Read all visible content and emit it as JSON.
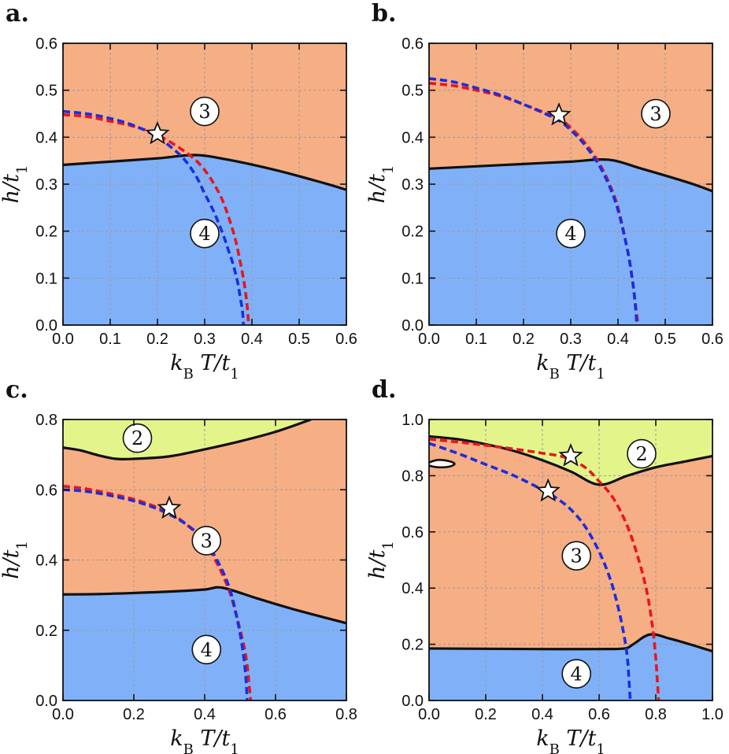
{
  "colors": {
    "region_2": "#e3f58a",
    "region_3": "#f6ae84",
    "region_4": "#80b1f8",
    "phase_boundary": "#111111",
    "red_dashed": "#e8161c",
    "blue_dashed": "#1a2ee0",
    "grid": "#9a9a9a"
  },
  "chart_data": [
    {
      "id": "a",
      "panel_label": "a.",
      "type": "area",
      "xlabel": "k_B T/t_1",
      "ylabel": "h/t_1",
      "xlim": [
        0,
        0.6
      ],
      "ylim": [
        0,
        0.6
      ],
      "xticks": [
        "0.0",
        "0.1",
        "0.2",
        "0.3",
        "0.4",
        "0.5",
        "0.6"
      ],
      "yticks": [
        "0.0",
        "0.1",
        "0.2",
        "0.3",
        "0.4",
        "0.5",
        "0.6"
      ],
      "grid": true,
      "boundaries": [
        {
          "name": "3-4 boundary",
          "x": [
            0,
            0.1,
            0.2,
            0.28,
            0.35,
            0.45,
            0.55,
            0.6
          ],
          "y": [
            0.341,
            0.348,
            0.355,
            0.362,
            0.352,
            0.33,
            0.303,
            0.288
          ]
        }
      ],
      "regions": [
        {
          "label": "3",
          "x": 0.3,
          "y": 0.455
        },
        {
          "label": "4",
          "x": 0.3,
          "y": 0.195
        }
      ],
      "series": [
        {
          "color": "red",
          "style": "dashed",
          "x": [
            0,
            0.05,
            0.1,
            0.15,
            0.2,
            0.25,
            0.28,
            0.3,
            0.32,
            0.34,
            0.36,
            0.37,
            0.38,
            0.385,
            0.39,
            0.393
          ],
          "y": [
            0.448,
            0.444,
            0.434,
            0.423,
            0.405,
            0.375,
            0.352,
            0.33,
            0.3,
            0.26,
            0.2,
            0.16,
            0.11,
            0.08,
            0.04,
            0.0
          ]
        },
        {
          "color": "blue",
          "style": "dashed",
          "x": [
            0,
            0.05,
            0.1,
            0.15,
            0.2,
            0.25,
            0.28,
            0.3,
            0.32,
            0.34,
            0.35,
            0.36,
            0.37,
            0.375,
            0.38,
            0.382
          ],
          "y": [
            0.455,
            0.45,
            0.44,
            0.425,
            0.4,
            0.36,
            0.32,
            0.28,
            0.24,
            0.19,
            0.16,
            0.13,
            0.09,
            0.06,
            0.03,
            0.0
          ]
        }
      ],
      "markers": [
        {
          "shape": "star",
          "x": 0.2,
          "y": 0.407
        }
      ]
    },
    {
      "id": "b",
      "panel_label": "b.",
      "type": "area",
      "xlabel": "k_B T/t_1",
      "ylabel": "h/t_1",
      "xlim": [
        0,
        0.6
      ],
      "ylim": [
        0,
        0.6
      ],
      "xticks": [
        "0.0",
        "0.1",
        "0.2",
        "0.3",
        "0.4",
        "0.5",
        "0.6"
      ],
      "yticks": [
        "0.0",
        "0.1",
        "0.2",
        "0.3",
        "0.4",
        "0.5",
        "0.6"
      ],
      "grid": true,
      "boundaries": [
        {
          "name": "3-4 boundary",
          "x": [
            0,
            0.1,
            0.2,
            0.3,
            0.38,
            0.45,
            0.55,
            0.6
          ],
          "y": [
            0.333,
            0.338,
            0.343,
            0.348,
            0.352,
            0.333,
            0.303,
            0.285
          ]
        }
      ],
      "regions": [
        {
          "label": "3",
          "x": 0.48,
          "y": 0.45
        },
        {
          "label": "4",
          "x": 0.3,
          "y": 0.195
        }
      ],
      "series": [
        {
          "color": "red",
          "style": "dashed",
          "x": [
            0,
            0.05,
            0.1,
            0.15,
            0.2,
            0.25,
            0.28,
            0.3,
            0.32,
            0.34,
            0.36,
            0.38,
            0.4,
            0.42,
            0.43,
            0.435,
            0.44,
            0.443
          ],
          "y": [
            0.515,
            0.51,
            0.5,
            0.488,
            0.47,
            0.45,
            0.437,
            0.42,
            0.4,
            0.375,
            0.345,
            0.305,
            0.25,
            0.16,
            0.1,
            0.06,
            0.02,
            0.0
          ]
        },
        {
          "color": "blue",
          "style": "dashed",
          "x": [
            0,
            0.05,
            0.1,
            0.15,
            0.2,
            0.25,
            0.28,
            0.3,
            0.32,
            0.34,
            0.36,
            0.38,
            0.4,
            0.42,
            0.43,
            0.435,
            0.44
          ],
          "y": [
            0.525,
            0.518,
            0.505,
            0.49,
            0.47,
            0.448,
            0.432,
            0.415,
            0.395,
            0.37,
            0.34,
            0.3,
            0.245,
            0.16,
            0.1,
            0.06,
            0.0
          ]
        }
      ],
      "markers": [
        {
          "shape": "star",
          "x": 0.275,
          "y": 0.447
        }
      ]
    },
    {
      "id": "c",
      "panel_label": "c.",
      "type": "area",
      "xlabel": "k_B T/t_1",
      "ylabel": "h/t_1",
      "xlim": [
        0,
        0.8
      ],
      "ylim": [
        0,
        0.8
      ],
      "xticks": [
        "0.0",
        "0.2",
        "0.4",
        "0.6",
        "0.8"
      ],
      "yticks": [
        "0.0",
        "0.2",
        "0.4",
        "0.6",
        "0.8"
      ],
      "grid": true,
      "boundaries": [
        {
          "name": "2-3 boundary",
          "x": [
            0,
            0.05,
            0.1,
            0.15,
            0.2,
            0.3,
            0.4,
            0.5,
            0.6,
            0.7
          ],
          "y": [
            0.72,
            0.712,
            0.698,
            0.688,
            0.688,
            0.695,
            0.715,
            0.738,
            0.765,
            0.8
          ]
        },
        {
          "name": "3-4 boundary",
          "x": [
            0,
            0.1,
            0.2,
            0.3,
            0.4,
            0.45,
            0.55,
            0.65,
            0.8
          ],
          "y": [
            0.302,
            0.303,
            0.306,
            0.31,
            0.316,
            0.321,
            0.29,
            0.26,
            0.22
          ]
        }
      ],
      "regions": [
        {
          "label": "2",
          "x": 0.21,
          "y": 0.747
        },
        {
          "label": "3",
          "x": 0.405,
          "y": 0.455
        },
        {
          "label": "4",
          "x": 0.405,
          "y": 0.145
        }
      ],
      "series": [
        {
          "color": "red",
          "style": "dashed",
          "x": [
            0,
            0.05,
            0.1,
            0.15,
            0.2,
            0.25,
            0.3,
            0.35,
            0.4,
            0.44,
            0.47,
            0.49,
            0.51,
            0.52,
            0.525,
            0.53
          ],
          "y": [
            0.61,
            0.605,
            0.596,
            0.585,
            0.573,
            0.556,
            0.535,
            0.5,
            0.45,
            0.38,
            0.31,
            0.24,
            0.16,
            0.1,
            0.05,
            0.0
          ]
        },
        {
          "color": "blue",
          "style": "dashed",
          "x": [
            0,
            0.05,
            0.1,
            0.15,
            0.2,
            0.25,
            0.3,
            0.35,
            0.4,
            0.44,
            0.47,
            0.49,
            0.505,
            0.515,
            0.52
          ],
          "y": [
            0.6,
            0.597,
            0.59,
            0.58,
            0.568,
            0.552,
            0.53,
            0.5,
            0.455,
            0.39,
            0.32,
            0.24,
            0.16,
            0.08,
            0.0
          ]
        }
      ],
      "markers": [
        {
          "shape": "star",
          "x": 0.3,
          "y": 0.547
        }
      ]
    },
    {
      "id": "d",
      "panel_label": "d.",
      "type": "area",
      "xlabel": "k_B T/t_1",
      "ylabel": "h/t_1",
      "xlim": [
        0,
        1.0
      ],
      "ylim": [
        0,
        1.0
      ],
      "xticks": [
        "0.0",
        "0.2",
        "0.4",
        "0.6",
        "0.8",
        "1.0"
      ],
      "yticks": [
        "0.0",
        "0.2",
        "0.4",
        "0.6",
        "0.8",
        "1.0"
      ],
      "grid": true,
      "boundaries": [
        {
          "name": "2-3 boundary",
          "x": [
            0,
            0.1,
            0.2,
            0.3,
            0.4,
            0.5,
            0.6,
            0.7,
            0.8,
            0.9,
            1.0
          ],
          "y": [
            0.94,
            0.93,
            0.912,
            0.888,
            0.855,
            0.815,
            0.768,
            0.8,
            0.83,
            0.85,
            0.87
          ]
        },
        {
          "name": "3-4 boundary",
          "x": [
            0,
            0.2,
            0.4,
            0.6,
            0.69,
            0.72,
            0.78,
            0.85,
            0.92,
            1.0
          ],
          "y": [
            0.185,
            0.184,
            0.183,
            0.183,
            0.185,
            0.2,
            0.235,
            0.22,
            0.2,
            0.175
          ]
        },
        {
          "name": "island",
          "closed": true,
          "x": [
            0.0,
            0.03,
            0.07,
            0.09,
            0.07,
            0.03,
            0.0,
            -0.01
          ],
          "y": [
            0.847,
            0.856,
            0.852,
            0.842,
            0.832,
            0.83,
            0.836,
            0.842
          ]
        }
      ],
      "regions": [
        {
          "label": "2",
          "x": 0.75,
          "y": 0.878
        },
        {
          "label": "3",
          "x": 0.52,
          "y": 0.515
        },
        {
          "label": "4",
          "x": 0.52,
          "y": 0.095
        }
      ],
      "series": [
        {
          "color": "red",
          "style": "dashed",
          "x": [
            0,
            0.1,
            0.2,
            0.3,
            0.4,
            0.48,
            0.55,
            0.6,
            0.65,
            0.7,
            0.74,
            0.77,
            0.79,
            0.8,
            0.805,
            0.81
          ],
          "y": [
            0.93,
            0.92,
            0.908,
            0.895,
            0.88,
            0.865,
            0.83,
            0.78,
            0.72,
            0.62,
            0.5,
            0.38,
            0.25,
            0.15,
            0.08,
            0.0
          ]
        },
        {
          "color": "blue",
          "style": "dashed",
          "x": [
            0,
            0.1,
            0.2,
            0.3,
            0.4,
            0.45,
            0.5,
            0.55,
            0.6,
            0.64,
            0.67,
            0.69,
            0.7,
            0.705,
            0.71
          ],
          "y": [
            0.915,
            0.88,
            0.84,
            0.8,
            0.75,
            0.72,
            0.68,
            0.62,
            0.53,
            0.43,
            0.32,
            0.22,
            0.15,
            0.08,
            0.0
          ]
        }
      ],
      "markers": [
        {
          "shape": "star",
          "x": 0.5,
          "y": 0.87
        },
        {
          "shape": "star",
          "x": 0.42,
          "y": 0.745
        }
      ]
    }
  ]
}
